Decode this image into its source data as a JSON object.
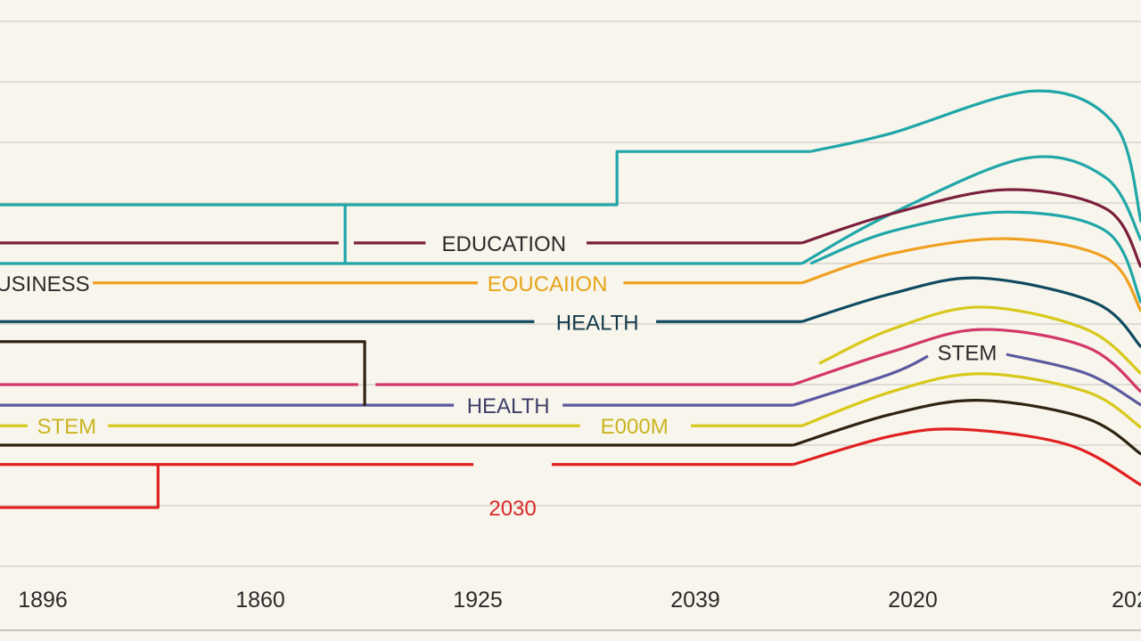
{
  "chart_data": {
    "type": "line",
    "title": "",
    "xlabel": "",
    "ylabel": "",
    "x_tick_labels": [
      "1896",
      "1860",
      "1925",
      "2039",
      "2020",
      "202"
    ],
    "grid": true,
    "grid_levels": [
      0,
      1,
      2,
      3,
      4,
      5,
      6,
      7,
      8,
      9
    ],
    "legend": "none",
    "background": "#f8f5ec",
    "series": [
      {
        "color": "#1fa6a8",
        "segments": [
          {
            "curve": false,
            "points": [
              [
                -0.2,
                5.97
              ],
              [
                2.64,
                5.97
              ],
              [
                2.64,
                6.85
              ],
              [
                3.53,
                6.85
              ]
            ]
          },
          {
            "curve": true,
            "points": [
              [
                3.53,
                6.85
              ],
              [
                3.9,
                7.15
              ],
              [
                4.56,
                7.85
              ],
              [
                4.93,
                7.29
              ],
              [
                5.05,
                5.68
              ]
            ]
          }
        ]
      },
      {
        "color": "#1fa6a8",
        "segments": [
          {
            "curve": false,
            "points": [
              [
                1.39,
                5.97
              ],
              [
                1.39,
                5.0
              ]
            ]
          },
          {
            "curve": false,
            "points": [
              [
                -0.2,
                5.0
              ],
              [
                3.49,
                5.0
              ]
            ]
          },
          {
            "curve": true,
            "points": [
              [
                3.49,
                5.0
              ],
              [
                3.9,
                5.82
              ],
              [
                4.52,
                6.74
              ],
              [
                4.89,
                6.41
              ],
              [
                5.05,
                5.38
              ]
            ]
          }
        ]
      },
      {
        "color": "#1fa6a8",
        "segments": [
          {
            "curve": true,
            "points": [
              [
                3.53,
                5.0
              ],
              [
                3.9,
                5.53
              ],
              [
                4.43,
                5.85
              ],
              [
                4.89,
                5.53
              ],
              [
                5.05,
                4.35
              ]
            ]
          }
        ]
      },
      {
        "color": "#7a1f3d",
        "label": {
          "text": "EDUCATION",
          "x": 2.12,
          "color": "#2b2b2b"
        },
        "segments": [
          {
            "curve": false,
            "points": [
              [
                -0.2,
                5.34
              ],
              [
                1.36,
                5.34
              ]
            ]
          },
          {
            "curve": false,
            "points": [
              [
                1.43,
                5.34
              ],
              [
                1.76,
                5.34
              ]
            ]
          },
          {
            "curve": false,
            "points": [
              [
                2.5,
                5.34
              ],
              [
                3.49,
                5.34
              ]
            ]
          },
          {
            "curve": true,
            "points": [
              [
                3.49,
                5.34
              ],
              [
                3.9,
                5.82
              ],
              [
                4.43,
                6.22
              ],
              [
                4.89,
                5.9
              ],
              [
                5.05,
                4.94
              ]
            ]
          }
        ]
      },
      {
        "color": "#f0a020",
        "label": {
          "text": "EOUCAIION",
          "x": 2.32,
          "color": "#e6a418"
        },
        "segments": [
          {
            "curve": false,
            "points": [
              [
                0.23,
                4.68
              ],
              [
                2.0,
                4.68
              ]
            ]
          },
          {
            "curve": false,
            "points": [
              [
                2.67,
                4.68
              ],
              [
                3.49,
                4.68
              ]
            ]
          },
          {
            "curve": true,
            "points": [
              [
                3.49,
                4.68
              ],
              [
                3.9,
                5.16
              ],
              [
                4.43,
                5.41
              ],
              [
                4.89,
                5.09
              ],
              [
                5.05,
                4.21
              ]
            ]
          }
        ]
      },
      {
        "color": "#0f4a60",
        "label": {
          "text": "HEALTH",
          "x": 2.55,
          "color": "#153a4a"
        },
        "segments": [
          {
            "curve": false,
            "points": [
              [
                -0.2,
                4.04
              ],
              [
                2.26,
                4.04
              ]
            ]
          },
          {
            "curve": false,
            "points": [
              [
                2.82,
                4.04
              ],
              [
                3.49,
                4.04
              ]
            ]
          },
          {
            "curve": true,
            "points": [
              [
                3.49,
                4.04
              ],
              [
                3.9,
                4.5
              ],
              [
                4.31,
                4.76
              ],
              [
                4.84,
                4.35
              ],
              [
                5.05,
                3.62
              ]
            ]
          }
        ]
      },
      {
        "color": "#d8c81a",
        "segments": [
          {
            "curve": true,
            "points": [
              [
                3.57,
                3.35
              ],
              [
                3.9,
                3.91
              ],
              [
                4.31,
                4.28
              ],
              [
                4.8,
                3.91
              ],
              [
                5.05,
                3.18
              ]
            ]
          }
        ]
      },
      {
        "color": "#d2386a",
        "segments": [
          {
            "curve": false,
            "points": [
              [
                -0.2,
                3.0
              ],
              [
                1.45,
                3.0
              ]
            ]
          },
          {
            "curve": false,
            "points": [
              [
                1.53,
                3.0
              ],
              [
                3.45,
                3.0
              ]
            ]
          },
          {
            "curve": true,
            "points": [
              [
                3.45,
                3.0
              ],
              [
                3.9,
                3.54
              ],
              [
                4.31,
                3.91
              ],
              [
                4.8,
                3.62
              ],
              [
                5.05,
                2.88
              ]
            ]
          }
        ]
      },
      {
        "color": "#5a5aa0",
        "label": {
          "text": "HEALTH",
          "x": 2.14,
          "color": "#3e3e6a"
        },
        "segments": [
          {
            "curve": false,
            "points": [
              [
                -0.2,
                2.66
              ],
              [
                1.89,
                2.66
              ]
            ]
          },
          {
            "curve": false,
            "points": [
              [
                2.39,
                2.66
              ],
              [
                3.45,
                2.66
              ]
            ]
          },
          {
            "curve": true,
            "points": [
              [
                3.45,
                2.66
              ],
              [
                3.9,
                3.18
              ],
              [
                4.07,
                3.47
              ]
            ]
          },
          {
            "curve": true,
            "points": [
              [
                4.43,
                3.5
              ],
              [
                4.8,
                3.18
              ],
              [
                5.05,
                2.66
              ]
            ]
          }
        ]
      },
      {
        "color": "#5a5aa0",
        "label": {
          "text": "STEM",
          "x": 4.25,
          "y": 3.54,
          "color": "#2b2b2b"
        },
        "segments": []
      },
      {
        "color": "#2e2310",
        "segments": [
          {
            "curve": false,
            "points": [
              [
                -0.2,
                3.71
              ],
              [
                1.48,
                3.71
              ],
              [
                1.48,
                2.65
              ]
            ]
          },
          {
            "curve": false,
            "points": [
              [
                -0.2,
                2.0
              ],
              [
                3.45,
                2.0
              ]
            ]
          },
          {
            "curve": true,
            "points": [
              [
                3.45,
                2.0
              ],
              [
                3.9,
                2.51
              ],
              [
                4.31,
                2.74
              ],
              [
                4.8,
                2.44
              ],
              [
                5.05,
                1.85
              ]
            ]
          }
        ]
      },
      {
        "color": "#d8c81a",
        "label": {
          "text": "STEM",
          "x": 0.11,
          "color": "#c9b520"
        },
        "segments": [
          {
            "curve": false,
            "points": [
              [
                -0.2,
                2.32
              ],
              [
                -0.07,
                2.32
              ]
            ]
          },
          {
            "curve": false,
            "points": [
              [
                0.3,
                2.32
              ],
              [
                2.47,
                2.32
              ]
            ]
          },
          {
            "curve": false,
            "points": [
              [
                2.98,
                2.32
              ],
              [
                3.49,
                2.32
              ]
            ]
          },
          {
            "curve": true,
            "points": [
              [
                3.49,
                2.32
              ],
              [
                3.9,
                2.88
              ],
              [
                4.31,
                3.18
              ],
              [
                4.8,
                2.88
              ],
              [
                5.05,
                2.29
              ]
            ]
          }
        ]
      },
      {
        "color": "#d8c81a",
        "label": {
          "text": "E000M",
          "x": 2.72,
          "y": 2.32,
          "color": "#c9b520"
        },
        "segments": []
      },
      {
        "color": "#e02020",
        "label": {
          "text": "2030",
          "x": 2.16,
          "color": "#d82828"
        },
        "segments": [
          {
            "curve": false,
            "points": [
              [
                -0.2,
                0.97
              ],
              [
                0.53,
                0.97
              ],
              [
                0.53,
                1.68
              ]
            ]
          },
          {
            "curve": false,
            "points": [
              [
                -0.2,
                1.68
              ],
              [
                1.98,
                1.68
              ]
            ]
          },
          {
            "curve": false,
            "points": [
              [
                2.34,
                1.68
              ],
              [
                3.45,
                1.68
              ]
            ]
          },
          {
            "curve": true,
            "points": [
              [
                3.45,
                1.68
              ],
              [
                3.9,
                2.15
              ],
              [
                4.23,
                2.26
              ],
              [
                4.72,
                2.0
              ],
              [
                5.05,
                1.34
              ]
            ]
          }
        ]
      },
      {
        "color": "#2b2b2b",
        "label": {
          "text": "USINESS",
          "x": 0.0,
          "y": 4.68,
          "color": "#2b2b2b"
        },
        "segments": []
      }
    ]
  }
}
